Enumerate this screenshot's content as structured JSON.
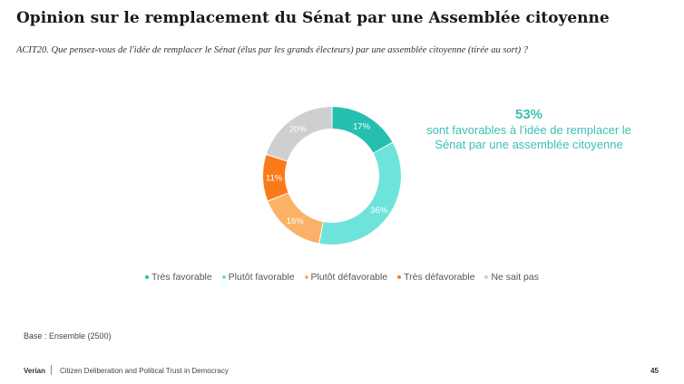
{
  "title": "Opinion sur le remplacement du Sénat par une Assemblée citoyenne",
  "question": "ACIT20. Que pensez-vous de l'idée de remplacer le Sénat (élus par les grands électeurs) par une assemblée citoyenne (tirée au sort) ?",
  "callout": {
    "value": "53%",
    "line1": "sont favorables à l'idée de remplacer le",
    "line2": "Sénat par une assemblée citoyenne",
    "color": "#3dbfb4"
  },
  "chart_data": {
    "type": "pie",
    "donut": true,
    "categories": [
      "Très favorable",
      "Plutôt favorable",
      "Plutôt défavorable",
      "Très défavorable",
      "Ne sait pas"
    ],
    "values": [
      17,
      36,
      16,
      11,
      20
    ],
    "labels": [
      "17%",
      "36%",
      "16%",
      "11%",
      "20%"
    ],
    "colors": [
      "#25bfb0",
      "#6ee3da",
      "#fbb168",
      "#fb7b1b",
      "#cfcfcf"
    ],
    "legend_position": "bottom"
  },
  "base": "Base : Ensemble (2500)",
  "footer": {
    "brand": "Verian",
    "text": "Citizen Deliberation and Political Trust in Democracy",
    "page": "45"
  }
}
